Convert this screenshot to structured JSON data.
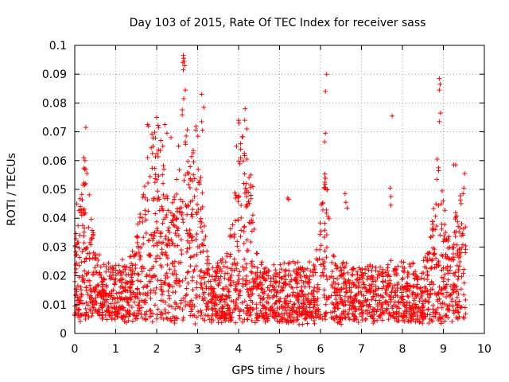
{
  "chart_data": {
    "type": "scatter",
    "title": "Day 103 of 2015, Rate Of TEC Index for receiver sass",
    "xlabel": "GPS time / hours",
    "ylabel": "ROTI / TECUs",
    "xlim": [
      0,
      10
    ],
    "ylim": [
      0,
      0.1
    ],
    "x_ticks": [
      "0",
      "1",
      "2",
      "3",
      "4",
      "5",
      "6",
      "7",
      "8",
      "9",
      "10"
    ],
    "y_ticks": [
      "0",
      "0.01",
      "0.02",
      "0.03",
      "0.04",
      "0.05",
      "0.06",
      "0.07",
      "0.08",
      "0.09",
      "0.1"
    ],
    "x_tick_values": [
      0,
      1,
      2,
      3,
      4,
      5,
      6,
      7,
      8,
      9,
      10
    ],
    "y_tick_values": [
      0,
      0.01,
      0.02,
      0.03,
      0.04,
      0.05,
      0.06,
      0.07,
      0.08,
      0.09,
      0.1
    ],
    "grid": true,
    "marker": "plus",
    "marker_color": "#ff0000",
    "series": [
      {
        "name": "ROTI",
        "time_range_hours": [
          0,
          9.55
        ],
        "baseline_roti": 0.012,
        "bursts": [
          {
            "center_hours": 0.25,
            "width_hours": 0.2,
            "peak_roti": 0.045
          },
          {
            "center_hours": 1.95,
            "width_hours": 0.35,
            "peak_roti": 0.065
          },
          {
            "center_hours": 2.65,
            "width_hours": 0.2,
            "peak_roti": 0.07
          },
          {
            "center_hours": 3.0,
            "width_hours": 0.15,
            "peak_roti": 0.06
          },
          {
            "center_hours": 4.1,
            "width_hours": 0.25,
            "peak_roti": 0.06
          },
          {
            "center_hours": 6.1,
            "width_hours": 0.15,
            "peak_roti": 0.04
          },
          {
            "center_hours": 8.9,
            "width_hours": 0.2,
            "peak_roti": 0.04
          },
          {
            "center_hours": 9.4,
            "width_hours": 0.15,
            "peak_roti": 0.035
          }
        ],
        "points": [
          [
            0.27,
            0.0715
          ],
          [
            0.22,
            0.061
          ],
          [
            0.25,
            0.06
          ],
          [
            0.2,
            0.0515
          ],
          [
            0.05,
            0.045
          ],
          [
            1.78,
            0.0725
          ],
          [
            1.8,
            0.072
          ],
          [
            2.0,
            0.075
          ],
          [
            2.05,
            0.0715
          ],
          [
            2.2,
            0.0725
          ],
          [
            2.25,
            0.0695
          ],
          [
            2.35,
            0.068
          ],
          [
            2.1,
            0.067
          ],
          [
            2.15,
            0.065
          ],
          [
            1.9,
            0.0625
          ],
          [
            2.65,
            0.0965
          ],
          [
            2.66,
            0.0955
          ],
          [
            2.67,
            0.0945
          ],
          [
            2.64,
            0.094
          ],
          [
            2.68,
            0.093
          ],
          [
            2.65,
            0.0915
          ],
          [
            2.7,
            0.0845
          ],
          [
            2.66,
            0.0815
          ],
          [
            2.72,
            0.0685
          ],
          [
            2.7,
            0.0665
          ],
          [
            3.1,
            0.083
          ],
          [
            3.15,
            0.0785
          ],
          [
            3.1,
            0.0735
          ],
          [
            3.12,
            0.0705
          ],
          [
            3.05,
            0.053
          ],
          [
            4.0,
            0.074
          ],
          [
            4.01,
            0.073
          ],
          [
            4.16,
            0.078
          ],
          [
            4.15,
            0.074
          ],
          [
            4.2,
            0.071
          ],
          [
            3.95,
            0.065
          ],
          [
            4.05,
            0.064
          ],
          [
            4.2,
            0.0605
          ],
          [
            4.3,
            0.055
          ],
          [
            4.35,
            0.051
          ],
          [
            6.15,
            0.09
          ],
          [
            6.12,
            0.084
          ],
          [
            6.12,
            0.0695
          ],
          [
            6.1,
            0.0665
          ],
          [
            6.1,
            0.0505
          ],
          [
            6.6,
            0.0485
          ],
          [
            6.62,
            0.0455
          ],
          [
            6.65,
            0.0435
          ],
          [
            7.75,
            0.0755
          ],
          [
            7.7,
            0.0505
          ],
          [
            7.72,
            0.0475
          ],
          [
            7.72,
            0.0445
          ],
          [
            8.9,
            0.0885
          ],
          [
            8.92,
            0.0865
          ],
          [
            8.9,
            0.0845
          ],
          [
            8.93,
            0.0765
          ],
          [
            8.9,
            0.0735
          ],
          [
            8.85,
            0.0605
          ],
          [
            8.88,
            0.0575
          ],
          [
            8.84,
            0.0535
          ],
          [
            9.25,
            0.0585
          ],
          [
            9.3,
            0.0585
          ],
          [
            9.52,
            0.0555
          ],
          [
            9.5,
            0.0505
          ],
          [
            9.48,
            0.0485
          ],
          [
            5.2,
            0.047
          ],
          [
            5.22,
            0.0465
          ]
        ]
      }
    ]
  }
}
